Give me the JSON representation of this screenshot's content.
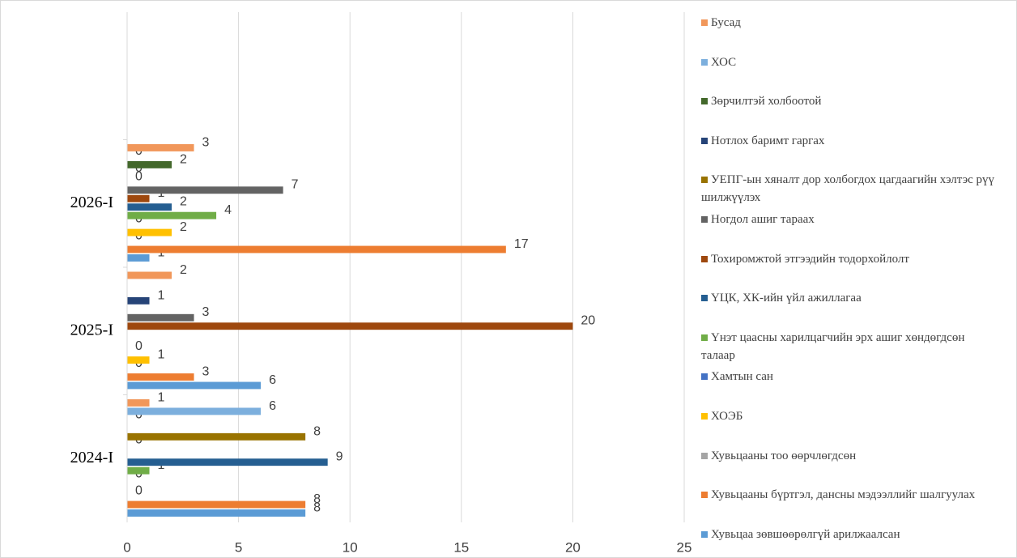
{
  "chart_data": {
    "type": "hbar",
    "categories": [
      "2024-I",
      "2025-I",
      "2026-I",
      null
    ],
    "xlim": [
      0,
      25
    ],
    "xticks": [
      0,
      5,
      10,
      15,
      20,
      25
    ],
    "grid": true,
    "series": [
      {
        "name": "Хувьцаа зөвшөөрөлгүй арилжаалсан",
        "color": "#5b9bd5",
        "values": [
          8,
          6,
          1,
          null
        ]
      },
      {
        "name": "Хувьцааны бүртгэл, дансны мэдээллийг шалгуулах",
        "color": "#ed7d31",
        "values": [
          8,
          3,
          17,
          null
        ]
      },
      {
        "name": "Хувьцааны тоо өөрчлөгдсөн",
        "color": "#a5a5a5",
        "values": [
          0,
          0,
          0,
          null
        ]
      },
      {
        "name": "ХОЭБ",
        "color": "#ffc000",
        "values": [
          null,
          1,
          2,
          null
        ]
      },
      {
        "name": "Хамтын сан",
        "color": "#4472c4",
        "values": [
          0,
          0,
          0,
          null
        ]
      },
      {
        "name": "Үнэт цаасны харилцагчийн эрх ашиг хөндөгдсөн талаар",
        "color": "#70ad47",
        "values": [
          1,
          null,
          4,
          null
        ]
      },
      {
        "name": "ҮЦК, ХК-ийн үйл ажиллагаа",
        "color": "#255e91",
        "values": [
          9,
          null,
          2,
          null
        ]
      },
      {
        "name": "Тохиромжтой этгээдийн тодорхойлолт",
        "color": "#9e480e",
        "values": [
          null,
          20,
          1,
          null
        ]
      },
      {
        "name": "Ногдол ашиг тараах",
        "color": "#636363",
        "values": [
          0,
          3,
          7,
          null
        ]
      },
      {
        "name": "УЕПГ-ын хяналт дор холбогдох цагдаагийн хэлтэс рүү шилжүүлэх",
        "color": "#997300",
        "values": [
          8,
          null,
          0,
          null
        ]
      },
      {
        "name": "Нотлох баримт гаргах",
        "color": "#264478",
        "values": [
          null,
          1,
          0,
          null
        ]
      },
      {
        "name": "Зөрчилтэй холбоотой",
        "color": "#43682b",
        "values": [
          0,
          null,
          2,
          null
        ]
      },
      {
        "name": "ХОС",
        "color": "#7cafdd",
        "values": [
          6,
          null,
          0,
          null
        ]
      },
      {
        "name": "Бусад",
        "color": "#f1975a",
        "values": [
          1,
          2,
          3,
          null
        ]
      }
    ]
  }
}
